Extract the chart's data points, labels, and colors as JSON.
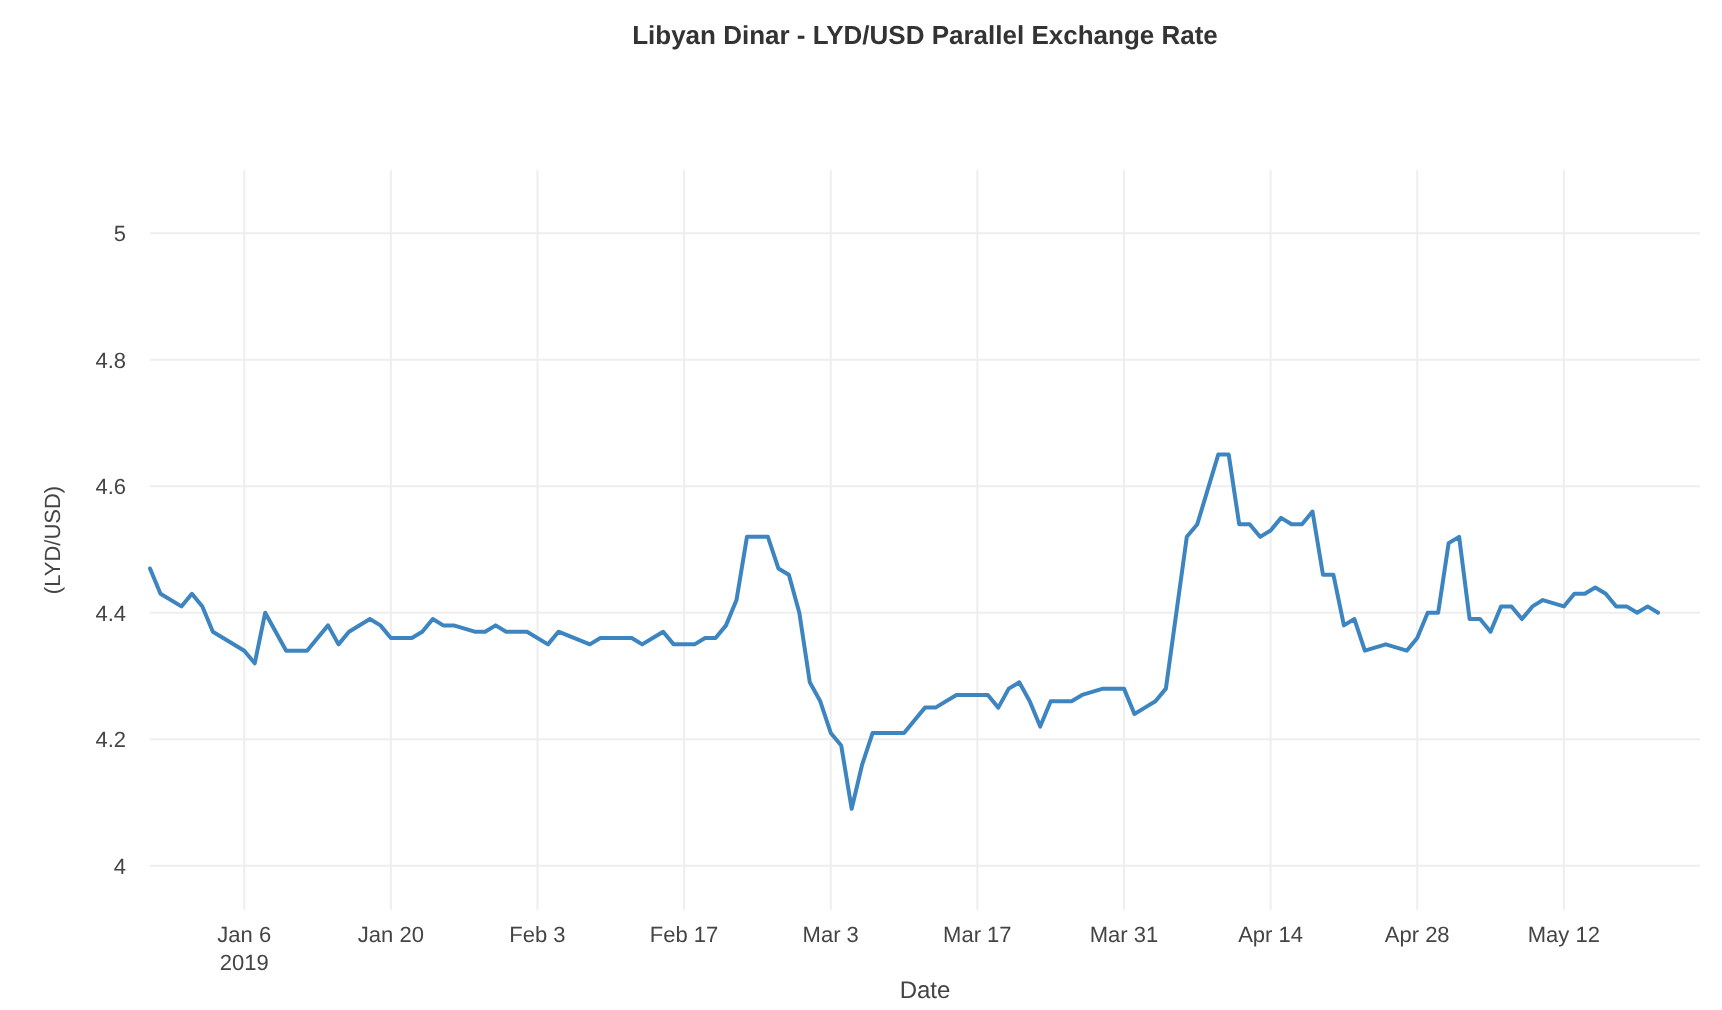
{
  "chart_data": {
    "type": "line",
    "title": "Libyan Dinar - LYD/USD Parallel Exchange Rate",
    "xlabel": "Date",
    "ylabel": "(LYD/USD)",
    "x": [
      "2018-12-28",
      "2018-12-29",
      "2018-12-31",
      "2019-01-01",
      "2019-01-02",
      "2019-01-03",
      "2019-01-06",
      "2019-01-07",
      "2019-01-08",
      "2019-01-09",
      "2019-01-10",
      "2019-01-12",
      "2019-01-13",
      "2019-01-14",
      "2019-01-15",
      "2019-01-16",
      "2019-01-18",
      "2019-01-19",
      "2019-01-20",
      "2019-01-21",
      "2019-01-22",
      "2019-01-23",
      "2019-01-24",
      "2019-01-25",
      "2019-01-26",
      "2019-01-28",
      "2019-01-29",
      "2019-01-30",
      "2019-01-31",
      "2019-02-02",
      "2019-02-04",
      "2019-02-05",
      "2019-02-08",
      "2019-02-09",
      "2019-02-12",
      "2019-02-13",
      "2019-02-14",
      "2019-02-15",
      "2019-02-16",
      "2019-02-18",
      "2019-02-19",
      "2019-02-20",
      "2019-02-21",
      "2019-02-22",
      "2019-02-23",
      "2019-02-24",
      "2019-02-25",
      "2019-02-26",
      "2019-02-27",
      "2019-02-28",
      "2019-03-01",
      "2019-03-02",
      "2019-03-03",
      "2019-03-04",
      "2019-03-05",
      "2019-03-06",
      "2019-03-07",
      "2019-03-10",
      "2019-03-11",
      "2019-03-12",
      "2019-03-13",
      "2019-03-15",
      "2019-03-18",
      "2019-03-19",
      "2019-03-20",
      "2019-03-21",
      "2019-03-22",
      "2019-03-23",
      "2019-03-24",
      "2019-03-26",
      "2019-03-27",
      "2019-03-29",
      "2019-03-31",
      "2019-04-01",
      "2019-04-02",
      "2019-04-03",
      "2019-04-04",
      "2019-04-06",
      "2019-04-07",
      "2019-04-09",
      "2019-04-10",
      "2019-04-11",
      "2019-04-12",
      "2019-04-13",
      "2019-04-14",
      "2019-04-15",
      "2019-04-16",
      "2019-04-17",
      "2019-04-18",
      "2019-04-19",
      "2019-04-20",
      "2019-04-21",
      "2019-04-22",
      "2019-04-23",
      "2019-04-25",
      "2019-04-27",
      "2019-04-28",
      "2019-04-29",
      "2019-04-30",
      "2019-05-01",
      "2019-05-02",
      "2019-05-03",
      "2019-05-04",
      "2019-05-05",
      "2019-05-06",
      "2019-05-07",
      "2019-05-08",
      "2019-05-09",
      "2019-05-10",
      "2019-05-12",
      "2019-05-13",
      "2019-05-14",
      "2019-05-15",
      "2019-05-16",
      "2019-05-17",
      "2019-05-18",
      "2019-05-19",
      "2019-05-20",
      "2019-05-21"
    ],
    "series": [
      {
        "color": "#3d85c0",
        "values": [
          4.47,
          4.43,
          4.41,
          4.43,
          4.41,
          4.37,
          4.34,
          4.32,
          4.4,
          4.37,
          4.34,
          4.34,
          4.36,
          4.38,
          4.35,
          4.37,
          4.39,
          4.38,
          4.36,
          4.36,
          4.36,
          4.37,
          4.39,
          4.38,
          4.38,
          4.37,
          4.37,
          4.38,
          4.37,
          4.37,
          4.35,
          4.37,
          4.35,
          4.36,
          4.36,
          4.35,
          4.36,
          4.37,
          4.35,
          4.35,
          4.36,
          4.36,
          4.38,
          4.42,
          4.52,
          4.52,
          4.52,
          4.47,
          4.46,
          4.4,
          4.29,
          4.26,
          4.21,
          4.19,
          4.09,
          4.16,
          4.21,
          4.21,
          4.23,
          4.25,
          4.25,
          4.27,
          4.27,
          4.25,
          4.28,
          4.29,
          4.26,
          4.22,
          4.26,
          4.26,
          4.27,
          4.28,
          4.28,
          4.24,
          4.25,
          4.26,
          4.28,
          4.52,
          4.54,
          4.65,
          4.65,
          4.54,
          4.54,
          4.52,
          4.53,
          4.55,
          4.54,
          4.54,
          4.56,
          4.46,
          4.46,
          4.38,
          4.39,
          4.34,
          4.35,
          4.34,
          4.36,
          4.4,
          4.4,
          4.51,
          4.52,
          4.39,
          4.39,
          4.37,
          4.41,
          4.41,
          4.39,
          4.41,
          4.42,
          4.41,
          4.43,
          4.43,
          4.44,
          4.43,
          4.41,
          4.41,
          4.4,
          4.41,
          4.4
        ]
      }
    ],
    "xlim": [
      "2018-12-28",
      "2019-05-25"
    ],
    "ylim": [
      3.93,
      5.1
    ],
    "xticks": [
      {
        "value": "2019-01-06",
        "label": "Jan 6\n2019"
      },
      {
        "value": "2019-01-20",
        "label": "Jan 20"
      },
      {
        "value": "2019-02-03",
        "label": "Feb 3"
      },
      {
        "value": "2019-02-17",
        "label": "Feb 17"
      },
      {
        "value": "2019-03-03",
        "label": "Mar 3"
      },
      {
        "value": "2019-03-17",
        "label": "Mar 17"
      },
      {
        "value": "2019-03-31",
        "label": "Mar 31"
      },
      {
        "value": "2019-04-14",
        "label": "Apr 14"
      },
      {
        "value": "2019-04-28",
        "label": "Apr 28"
      },
      {
        "value": "2019-05-12",
        "label": "May 12"
      }
    ],
    "yticks": [
      4,
      4.2,
      4.4,
      4.6,
      4.8,
      5
    ],
    "grid": true,
    "marker": "none",
    "line_style": "solid"
  }
}
